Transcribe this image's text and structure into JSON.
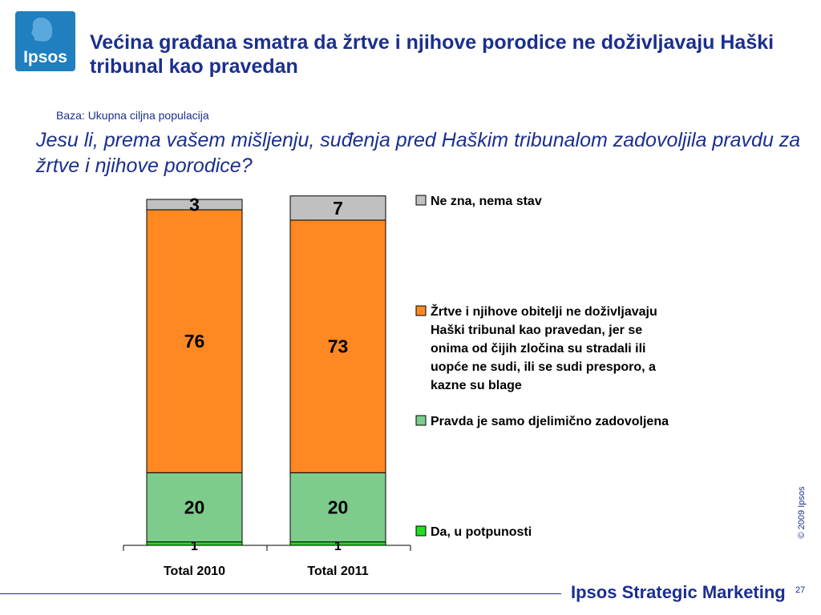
{
  "logo": {
    "text": "Ipsos"
  },
  "slide": {
    "title": "Većina građana smatra da žrtve i njihove porodice ne doživljavaju Haški tribunal kao pravedan",
    "base": "Baza: Ukupna ciljna populacija",
    "question": "Jesu li, prema vašem mišljenju, suđenja pred Haškim tribunalom zadovoljila pravdu za žrtve i njihove porodice?",
    "copyright": "© 2009 Ipsos",
    "footer_brand": "Ipsos Strategic Marketing",
    "page_number": "27"
  },
  "chart_data": {
    "type": "bar",
    "stacked": true,
    "categories": [
      "Total 2010",
      "Total 2011"
    ],
    "ylim": [
      0,
      100
    ],
    "grid": false,
    "legend_position": "right",
    "series": [
      {
        "name": "Da, u potpunosti",
        "values": [
          1,
          1
        ],
        "color": "#22dd22"
      },
      {
        "name": "Pravda je samo djelimično zadovoljena",
        "values": [
          20,
          20
        ],
        "color": "#7dcc8c"
      },
      {
        "name": "Žrtve i njihove obitelji ne doživljavaju Haški tribunal kao pravedan, jer se onima od čijih zločina su stradali ili uopće ne sudi, ili se sudi presporo, a kazne su blage",
        "values": [
          76,
          73
        ],
        "color": "#ff8822"
      },
      {
        "name": "Ne zna, nema stav",
        "values": [
          3,
          7
        ],
        "color": "#c0c0c0"
      }
    ]
  }
}
